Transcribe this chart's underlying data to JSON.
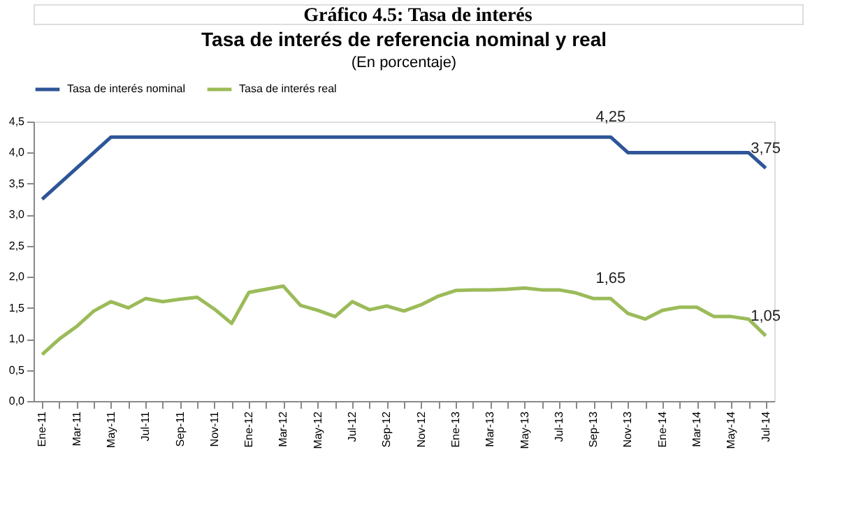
{
  "chart_data": {
    "type": "line",
    "title": "Tasa de interés de referencia nominal y real",
    "subtitle": "(En porcentaje)",
    "annotations": [
      "Gráfico 4.5: Tasa de interés"
    ],
    "categories": [
      "Ene-11",
      null,
      "Mar-11",
      null,
      "May-11",
      null,
      "Jul-11",
      null,
      "Sep-11",
      null,
      "Nov-11",
      null,
      "Ene-12",
      null,
      "Mar-12",
      null,
      "May-12",
      null,
      "Jul-12",
      null,
      "Sep-12",
      null,
      "Nov-12",
      null,
      "Ene-13",
      null,
      "Mar-13",
      null,
      "May-13",
      null,
      "Jul-13",
      null,
      "Sep-13",
      null,
      "Nov-13",
      null,
      "Ene-14",
      null,
      "Mar-14",
      null,
      "May-14",
      null,
      "Jul-14"
    ],
    "series": [
      {
        "name": "Tasa de interés nominal",
        "color": "#2e5597",
        "values": [
          3.25,
          3.5,
          3.75,
          4.0,
          4.25,
          4.25,
          4.25,
          4.25,
          4.25,
          4.25,
          4.25,
          4.25,
          4.25,
          4.25,
          4.25,
          4.25,
          4.25,
          4.25,
          4.25,
          4.25,
          4.25,
          4.25,
          4.25,
          4.25,
          4.25,
          4.25,
          4.25,
          4.25,
          4.25,
          4.25,
          4.25,
          4.25,
          4.25,
          4.25,
          4.0,
          4.0,
          4.0,
          4.0,
          4.0,
          4.0,
          4.0,
          4.0,
          3.75
        ],
        "value_labels": [
          null,
          null,
          null,
          null,
          null,
          null,
          null,
          null,
          null,
          null,
          null,
          null,
          null,
          null,
          null,
          null,
          null,
          null,
          null,
          null,
          null,
          null,
          null,
          null,
          null,
          null,
          null,
          null,
          null,
          null,
          null,
          null,
          null,
          "4,25",
          null,
          null,
          null,
          null,
          null,
          null,
          null,
          null,
          "3,75"
        ]
      },
      {
        "name": "Tasa de interés real",
        "color": "#9bbb59",
        "values": [
          0.75,
          1.0,
          1.2,
          1.45,
          1.6,
          1.5,
          1.65,
          1.6,
          1.64,
          1.67,
          1.48,
          1.25,
          1.75,
          1.8,
          1.85,
          1.54,
          1.46,
          1.36,
          1.6,
          1.47,
          1.53,
          1.45,
          1.55,
          1.69,
          1.78,
          1.79,
          1.79,
          1.8,
          1.82,
          1.79,
          1.79,
          1.74,
          1.65,
          1.65,
          1.41,
          1.32,
          1.46,
          1.51,
          1.51,
          1.36,
          1.36,
          1.32,
          1.05
        ],
        "value_labels": [
          null,
          null,
          null,
          null,
          null,
          null,
          null,
          null,
          null,
          null,
          null,
          null,
          null,
          null,
          null,
          null,
          null,
          null,
          null,
          null,
          null,
          null,
          null,
          null,
          null,
          null,
          null,
          null,
          null,
          null,
          null,
          null,
          null,
          "1,65",
          null,
          null,
          null,
          null,
          null,
          null,
          null,
          null,
          "1,05"
        ]
      }
    ],
    "ylim": [
      0,
      4.5
    ],
    "yticks": [
      {
        "value": 0,
        "label": "0,0"
      },
      {
        "value": 0.5,
        "label": "0,5"
      },
      {
        "value": 1.0,
        "label": "1,0"
      },
      {
        "value": 1.5,
        "label": "1,5"
      },
      {
        "value": 2.0,
        "label": "2,0"
      },
      {
        "value": 2.5,
        "label": "2,5"
      },
      {
        "value": 3.0,
        "label": "3,0"
      },
      {
        "value": 3.5,
        "label": "3,5"
      },
      {
        "value": 4.0,
        "label": "4,0"
      },
      {
        "value": 4.5,
        "label": "4,5"
      }
    ],
    "legend": "top",
    "grid": false,
    "marker": "none",
    "line_style": "solid"
  }
}
